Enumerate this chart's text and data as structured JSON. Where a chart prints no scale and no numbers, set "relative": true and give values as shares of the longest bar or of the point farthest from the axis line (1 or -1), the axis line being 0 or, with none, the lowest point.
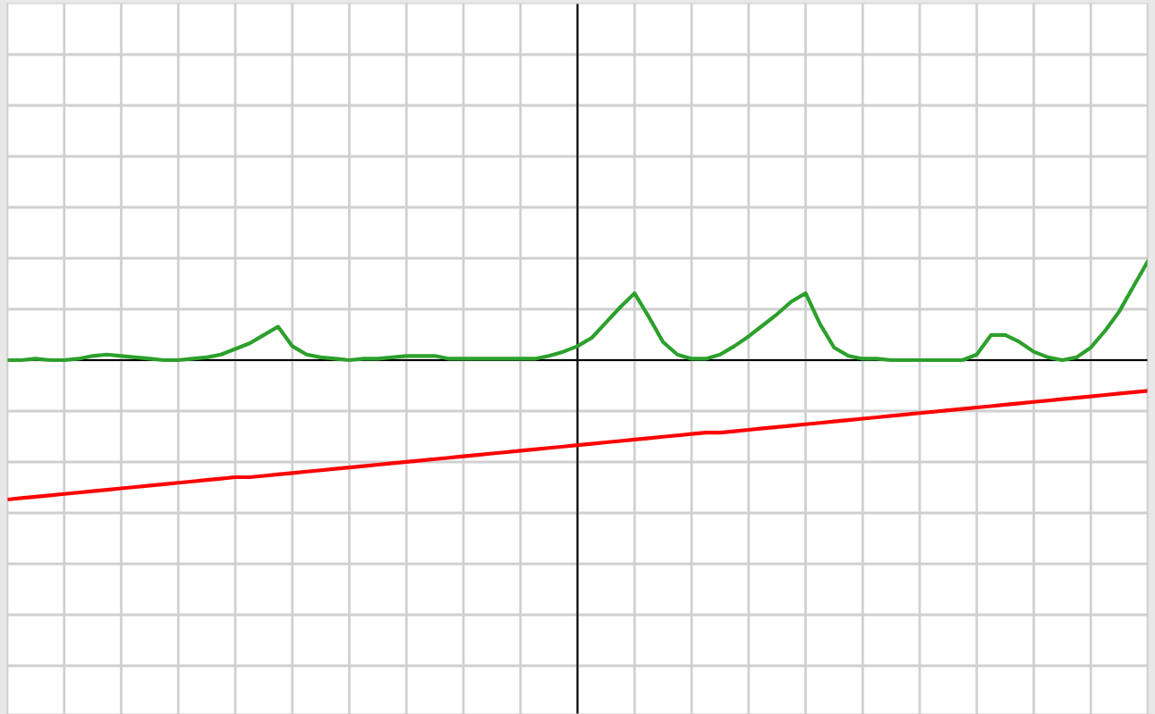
{
  "chart_data": {
    "type": "line",
    "relative": true,
    "grid": true,
    "tick_labels": false,
    "legend": false,
    "marker": "none",
    "line_style": "solid",
    "categories": [
      null,
      null,
      null,
      null,
      null,
      null,
      null,
      null,
      null,
      null,
      null,
      null,
      null,
      null,
      null,
      null,
      null,
      null,
      null,
      null,
      null,
      null,
      null,
      null,
      null,
      null,
      null,
      null,
      null,
      null,
      null,
      null,
      null,
      null,
      null,
      null,
      null,
      null,
      null,
      null,
      null,
      null,
      null,
      null,
      null,
      null,
      null,
      null,
      null,
      null,
      null,
      null,
      null,
      null,
      null,
      null,
      null,
      null,
      null,
      null,
      null,
      null,
      null,
      null,
      null,
      null,
      null,
      null,
      null,
      null,
      null,
      null,
      null,
      null,
      null,
      null,
      null,
      null,
      null,
      null,
      null
    ],
    "series": [
      {
        "color": "#2ca02c",
        "values": [
          0,
          0,
          0.01,
          0,
          0,
          0.01,
          0.03,
          0.04,
          0.03,
          0.02,
          0.01,
          0,
          0,
          0.01,
          0.02,
          0.04,
          0.08,
          0.12,
          0.18,
          0.24,
          0.1,
          0.04,
          0.02,
          0.01,
          0,
          0.01,
          0.01,
          0.02,
          0.03,
          0.03,
          0.03,
          0.01,
          0.01,
          0.01,
          0.01,
          0.01,
          0.01,
          0.01,
          0.03,
          0.06,
          0.1,
          0.16,
          0.27,
          0.38,
          0.48,
          0.31,
          0.13,
          0.04,
          0.01,
          0.01,
          0.04,
          0.1,
          0.17,
          0.25,
          0.33,
          0.42,
          0.48,
          0.26,
          0.09,
          0.03,
          0.01,
          0.01,
          0,
          0,
          0,
          0,
          0,
          0,
          0.04,
          0.18,
          0.18,
          0.13,
          0.06,
          0.02,
          0,
          0.02,
          0.09,
          0.21,
          0.35,
          0.53,
          0.71
        ]
      },
      {
        "color": "#ff0000",
        "values": [
          -1.0,
          -0.99,
          -0.98,
          -0.97,
          -0.96,
          -0.95,
          -0.94,
          -0.93,
          -0.92,
          -0.91,
          -0.9,
          -0.89,
          -0.88,
          -0.87,
          -0.86,
          -0.85,
          -0.84,
          -0.84,
          -0.83,
          -0.82,
          -0.81,
          -0.8,
          -0.79,
          -0.78,
          -0.77,
          -0.76,
          -0.75,
          -0.74,
          -0.73,
          -0.72,
          -0.71,
          -0.7,
          -0.69,
          -0.68,
          -0.67,
          -0.66,
          -0.65,
          -0.64,
          -0.63,
          -0.62,
          -0.61,
          -0.6,
          -0.59,
          -0.58,
          -0.57,
          -0.56,
          -0.55,
          -0.54,
          -0.53,
          -0.52,
          -0.52,
          -0.51,
          -0.5,
          -0.49,
          -0.48,
          -0.47,
          -0.46,
          -0.45,
          -0.44,
          -0.43,
          -0.42,
          -0.41,
          -0.4,
          -0.39,
          -0.38,
          -0.37,
          -0.36,
          -0.35,
          -0.34,
          -0.33,
          -0.32,
          -0.31,
          -0.3,
          -0.29,
          -0.28,
          -0.27,
          -0.26,
          -0.25,
          -0.24,
          -0.23,
          -0.22
        ]
      }
    ]
  }
}
